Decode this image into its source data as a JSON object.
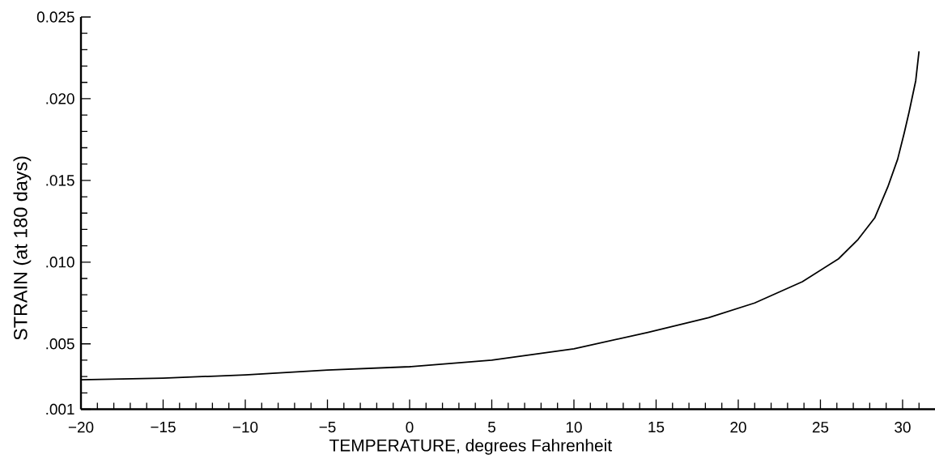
{
  "chart_data": {
    "type": "line",
    "xlabel": "TEMPERATURE, degrees Fahrenheit",
    "ylabel": "STRAIN   (at 180 days)",
    "line_style": "solid",
    "x": [
      -20,
      -15,
      -10,
      -5,
      0,
      5,
      10,
      14.5,
      18.2,
      21,
      23.9,
      26.1,
      27.3,
      28.3,
      29.1,
      29.7,
      30.1,
      30.4,
      30.8,
      31
    ],
    "series": [
      {
        "color": "#000000",
        "values": [
          0.0028,
          0.0029,
          0.0031,
          0.0034,
          0.0036,
          0.004,
          0.0047,
          0.0057,
          0.0066,
          0.0075,
          0.0088,
          0.0102,
          0.0114,
          0.0127,
          0.0146,
          0.0163,
          0.0179,
          0.0192,
          0.0211,
          0.0229
        ]
      }
    ],
    "xlim": [
      -20,
      32
    ],
    "ylim": [
      0.001,
      0.025
    ],
    "xticks": [
      {
        "value": -20,
        "label": "−20"
      },
      {
        "value": -19,
        "label": null
      },
      {
        "value": -18,
        "label": null
      },
      {
        "value": -17,
        "label": null
      },
      {
        "value": -16,
        "label": null
      },
      {
        "value": -15,
        "label": "−15"
      },
      {
        "value": -14,
        "label": null
      },
      {
        "value": -13,
        "label": null
      },
      {
        "value": -12,
        "label": null
      },
      {
        "value": -11,
        "label": null
      },
      {
        "value": -10,
        "label": "−10"
      },
      {
        "value": -9,
        "label": null
      },
      {
        "value": -8,
        "label": null
      },
      {
        "value": -7,
        "label": null
      },
      {
        "value": -6,
        "label": null
      },
      {
        "value": -5,
        "label": "−5"
      },
      {
        "value": -4,
        "label": null
      },
      {
        "value": -3,
        "label": null
      },
      {
        "value": -2,
        "label": null
      },
      {
        "value": -1,
        "label": null
      },
      0,
      {
        "value": 1,
        "label": null
      },
      {
        "value": 2,
        "label": null
      },
      {
        "value": 3,
        "label": null
      },
      {
        "value": 4,
        "label": null
      },
      5,
      {
        "value": 6,
        "label": null
      },
      {
        "value": 7,
        "label": null
      },
      {
        "value": 8,
        "label": null
      },
      {
        "value": 9,
        "label": null
      },
      10,
      {
        "value": 11,
        "label": null
      },
      {
        "value": 12,
        "label": null
      },
      {
        "value": 13,
        "label": null
      },
      {
        "value": 14,
        "label": null
      },
      15,
      {
        "value": 16,
        "label": null
      },
      {
        "value": 17,
        "label": null
      },
      {
        "value": 18,
        "label": null
      },
      {
        "value": 19,
        "label": null
      },
      20,
      {
        "value": 21,
        "label": null
      },
      {
        "value": 22,
        "label": null
      },
      {
        "value": 23,
        "label": null
      },
      {
        "value": 24,
        "label": null
      },
      25,
      {
        "value": 26,
        "label": null
      },
      {
        "value": 27,
        "label": null
      },
      {
        "value": 28,
        "label": null
      },
      {
        "value": 29,
        "label": null
      },
      30,
      {
        "value": 31,
        "label": null
      }
    ],
    "yticks": [
      {
        "value": 0.001,
        "label": ".001"
      },
      {
        "value": 0.002,
        "label": null
      },
      {
        "value": 0.003,
        "label": null
      },
      {
        "value": 0.004,
        "label": null
      },
      {
        "value": 0.005,
        "label": ".005"
      },
      {
        "value": 0.006,
        "label": null
      },
      {
        "value": 0.007,
        "label": null
      },
      {
        "value": 0.008,
        "label": null
      },
      {
        "value": 0.009,
        "label": null
      },
      {
        "value": 0.01,
        "label": ".010"
      },
      {
        "value": 0.011,
        "label": null
      },
      {
        "value": 0.012,
        "label": null
      },
      {
        "value": 0.013,
        "label": null
      },
      {
        "value": 0.014,
        "label": null
      },
      {
        "value": 0.015,
        "label": ".015"
      },
      {
        "value": 0.016,
        "label": null
      },
      {
        "value": 0.017,
        "label": null
      },
      {
        "value": 0.018,
        "label": null
      },
      {
        "value": 0.019,
        "label": null
      },
      {
        "value": 0.02,
        "label": ".020"
      },
      {
        "value": 0.021,
        "label": null
      },
      {
        "value": 0.022,
        "label": null
      },
      {
        "value": 0.023,
        "label": null
      },
      {
        "value": 0.024,
        "label": null
      },
      {
        "value": 0.025,
        "label": "0.025"
      }
    ]
  }
}
